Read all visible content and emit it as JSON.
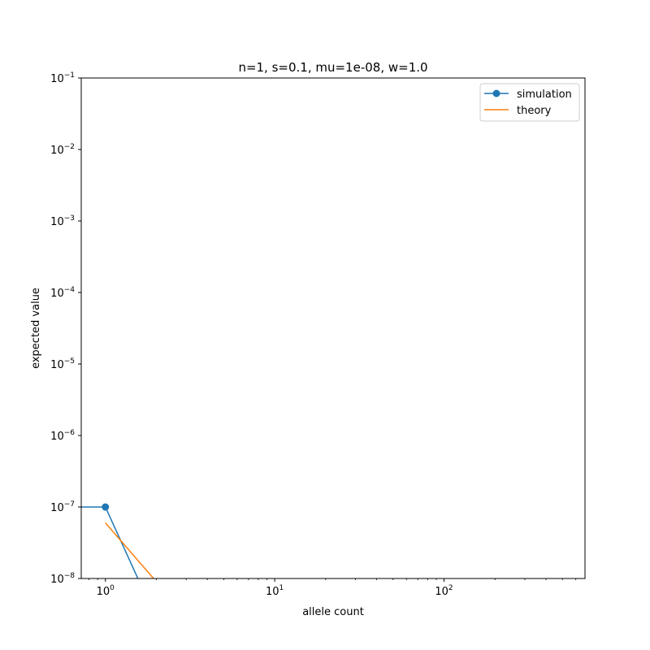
{
  "chart_data": {
    "type": "line",
    "title": "n=1, s=0.1, mu=1e-08, w=1.0",
    "xlabel": "allele count",
    "ylabel": "expected value",
    "xscale": "log",
    "yscale": "log",
    "xlim": [
      0.72,
      680
    ],
    "ylim": [
      1e-08,
      0.1
    ],
    "grid": false,
    "legend": "top-right",
    "x_ticks": [
      {
        "value": 1,
        "base": "10",
        "exp": "0"
      },
      {
        "value": 10,
        "base": "10",
        "exp": "1"
      },
      {
        "value": 100,
        "base": "10",
        "exp": "2"
      }
    ],
    "y_ticks": [
      {
        "value": 1e-08,
        "base": "10",
        "exp": "−8"
      },
      {
        "value": 1e-07,
        "base": "10",
        "exp": "−7"
      },
      {
        "value": 1e-06,
        "base": "10",
        "exp": "−6"
      },
      {
        "value": 1e-05,
        "base": "10",
        "exp": "−5"
      },
      {
        "value": 0.0001,
        "base": "10",
        "exp": "−4"
      },
      {
        "value": 0.001,
        "base": "10",
        "exp": "−3"
      },
      {
        "value": 0.01,
        "base": "10",
        "exp": "−2"
      },
      {
        "value": 0.1,
        "base": "10",
        "exp": "−1"
      }
    ],
    "series": [
      {
        "name": "simulation",
        "color": "#1f77b4",
        "marker": "circle",
        "points": [
          [
            0,
            1e-07
          ],
          [
            1,
            1e-07
          ],
          [
            2,
            0
          ]
        ]
      },
      {
        "name": "theory",
        "color": "#ff7f0e",
        "marker": "none",
        "points": [
          [
            1,
            6e-08
          ],
          [
            2,
            9e-09
          ]
        ]
      }
    ]
  }
}
